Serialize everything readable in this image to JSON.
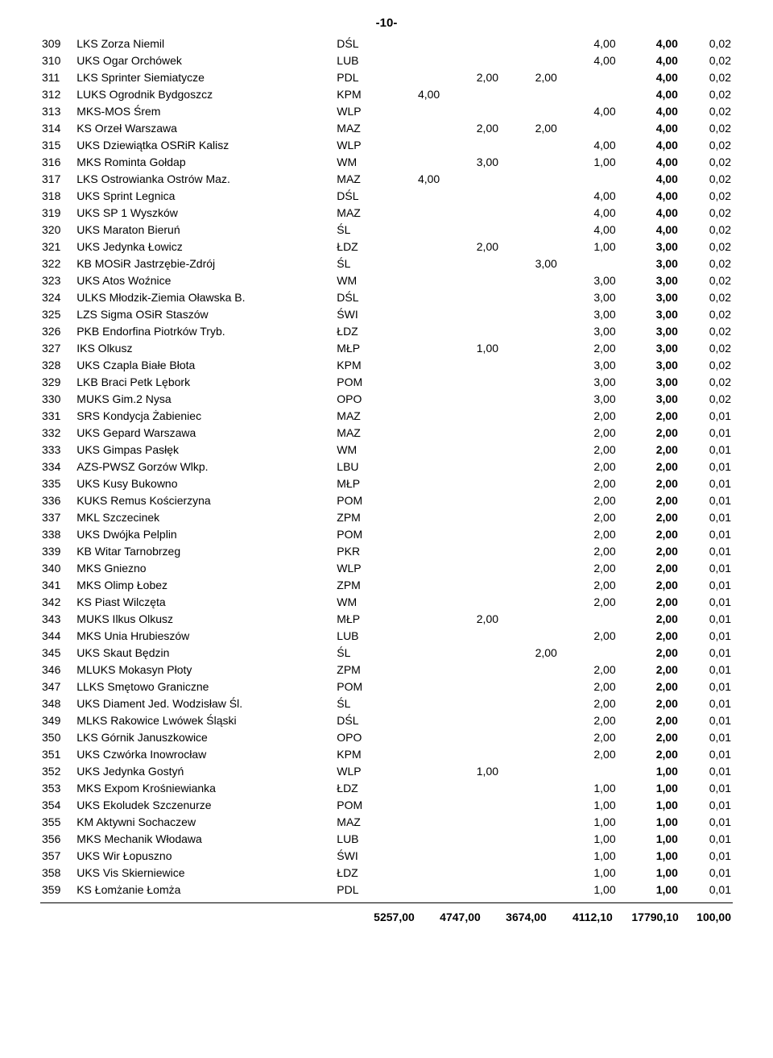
{
  "page_number_label": "-10-",
  "table": {
    "columns": [
      "rank",
      "club",
      "region",
      "c1",
      "c2",
      "c3",
      "c4",
      "total",
      "pct"
    ],
    "rows": [
      [
        "309",
        "LKS Zorza Niemil",
        "DŚL",
        "",
        "",
        "",
        "4,00",
        "4,00",
        "0,02"
      ],
      [
        "310",
        "UKS Ogar Orchówek",
        "LUB",
        "",
        "",
        "",
        "4,00",
        "4,00",
        "0,02"
      ],
      [
        "311",
        "LKS Sprinter Siemiatycze",
        "PDL",
        "",
        "2,00",
        "2,00",
        "",
        "4,00",
        "0,02"
      ],
      [
        "312",
        "LUKS Ogrodnik Bydgoszcz",
        "KPM",
        "4,00",
        "",
        "",
        "",
        "4,00",
        "0,02"
      ],
      [
        "313",
        "MKS-MOS Śrem",
        "WLP",
        "",
        "",
        "",
        "4,00",
        "4,00",
        "0,02"
      ],
      [
        "314",
        "KS Orzeł Warszawa",
        "MAZ",
        "",
        "2,00",
        "2,00",
        "",
        "4,00",
        "0,02"
      ],
      [
        "315",
        "UKS Dziewiątka OSRiR Kalisz",
        "WLP",
        "",
        "",
        "",
        "4,00",
        "4,00",
        "0,02"
      ],
      [
        "316",
        "MKS Rominta Gołdap",
        "WM",
        "",
        "3,00",
        "",
        "1,00",
        "4,00",
        "0,02"
      ],
      [
        "317",
        "LKS Ostrowianka Ostrów Maz.",
        "MAZ",
        "4,00",
        "",
        "",
        "",
        "4,00",
        "0,02"
      ],
      [
        "318",
        "UKS Sprint Legnica",
        "DŚL",
        "",
        "",
        "",
        "4,00",
        "4,00",
        "0,02"
      ],
      [
        "319",
        "UKS SP 1 Wyszków",
        "MAZ",
        "",
        "",
        "",
        "4,00",
        "4,00",
        "0,02"
      ],
      [
        "320",
        "UKS Maraton Bieruń",
        "ŚL",
        "",
        "",
        "",
        "4,00",
        "4,00",
        "0,02"
      ],
      [
        "321",
        "UKS Jedynka Łowicz",
        "ŁDZ",
        "",
        "2,00",
        "",
        "1,00",
        "3,00",
        "0,02"
      ],
      [
        "322",
        "KB MOSiR Jastrzębie-Zdrój",
        "ŚL",
        "",
        "",
        "3,00",
        "",
        "3,00",
        "0,02"
      ],
      [
        "323",
        "UKS Atos Woźnice",
        "WM",
        "",
        "",
        "",
        "3,00",
        "3,00",
        "0,02"
      ],
      [
        "324",
        "ULKS Młodzik-Ziemia Oławska B.",
        "DŚL",
        "",
        "",
        "",
        "3,00",
        "3,00",
        "0,02"
      ],
      [
        "325",
        "LZS Sigma OSiR Staszów",
        "ŚWI",
        "",
        "",
        "",
        "3,00",
        "3,00",
        "0,02"
      ],
      [
        "326",
        "PKB Endorfina Piotrków Tryb.",
        "ŁDZ",
        "",
        "",
        "",
        "3,00",
        "3,00",
        "0,02"
      ],
      [
        "327",
        "IKS Olkusz",
        "MŁP",
        "",
        "1,00",
        "",
        "2,00",
        "3,00",
        "0,02"
      ],
      [
        "328",
        "UKS Czapla Białe Błota",
        "KPM",
        "",
        "",
        "",
        "3,00",
        "3,00",
        "0,02"
      ],
      [
        "329",
        "LKB Braci Petk Lębork",
        "POM",
        "",
        "",
        "",
        "3,00",
        "3,00",
        "0,02"
      ],
      [
        "330",
        "MUKS Gim.2 Nysa",
        "OPO",
        "",
        "",
        "",
        "3,00",
        "3,00",
        "0,02"
      ],
      [
        "331",
        "SRS Kondycja Żabieniec",
        "MAZ",
        "",
        "",
        "",
        "2,00",
        "2,00",
        "0,01"
      ],
      [
        "332",
        "UKS Gepard Warszawa",
        "MAZ",
        "",
        "",
        "",
        "2,00",
        "2,00",
        "0,01"
      ],
      [
        "333",
        "UKS Gimpas Pasłęk",
        "WM",
        "",
        "",
        "",
        "2,00",
        "2,00",
        "0,01"
      ],
      [
        "334",
        "AZS-PWSZ Gorzów Wlkp.",
        "LBU",
        "",
        "",
        "",
        "2,00",
        "2,00",
        "0,01"
      ],
      [
        "335",
        "UKS Kusy Bukowno",
        "MŁP",
        "",
        "",
        "",
        "2,00",
        "2,00",
        "0,01"
      ],
      [
        "336",
        "KUKS Remus Kościerzyna",
        "POM",
        "",
        "",
        "",
        "2,00",
        "2,00",
        "0,01"
      ],
      [
        "337",
        "MKL Szczecinek",
        "ZPM",
        "",
        "",
        "",
        "2,00",
        "2,00",
        "0,01"
      ],
      [
        "338",
        "UKS Dwójka Pelplin",
        "POM",
        "",
        "",
        "",
        "2,00",
        "2,00",
        "0,01"
      ],
      [
        "339",
        "KB Witar Tarnobrzeg",
        "PKR",
        "",
        "",
        "",
        "2,00",
        "2,00",
        "0,01"
      ],
      [
        "340",
        "MKS Gniezno",
        "WLP",
        "",
        "",
        "",
        "2,00",
        "2,00",
        "0,01"
      ],
      [
        "341",
        "MKS Olimp Łobez",
        "ZPM",
        "",
        "",
        "",
        "2,00",
        "2,00",
        "0,01"
      ],
      [
        "342",
        "KS Piast Wilczęta",
        "WM",
        "",
        "",
        "",
        "2,00",
        "2,00",
        "0,01"
      ],
      [
        "343",
        "MUKS Ilkus Olkusz",
        "MŁP",
        "",
        "2,00",
        "",
        "",
        "2,00",
        "0,01"
      ],
      [
        "344",
        "MKS Unia Hrubieszów",
        "LUB",
        "",
        "",
        "",
        "2,00",
        "2,00",
        "0,01"
      ],
      [
        "345",
        "UKS Skaut Będzin",
        "ŚL",
        "",
        "",
        "2,00",
        "",
        "2,00",
        "0,01"
      ],
      [
        "346",
        "MLUKS Mokasyn Płoty",
        "ZPM",
        "",
        "",
        "",
        "2,00",
        "2,00",
        "0,01"
      ],
      [
        "347",
        "LLKS Smętowo Graniczne",
        "POM",
        "",
        "",
        "",
        "2,00",
        "2,00",
        "0,01"
      ],
      [
        "348",
        "UKS Diament Jed. Wodzisław Śl.",
        "ŚL",
        "",
        "",
        "",
        "2,00",
        "2,00",
        "0,01"
      ],
      [
        "349",
        "MLKS Rakowice Lwówek Śląski",
        "DŚL",
        "",
        "",
        "",
        "2,00",
        "2,00",
        "0,01"
      ],
      [
        "350",
        "LKS Górnik Januszkowice",
        "OPO",
        "",
        "",
        "",
        "2,00",
        "2,00",
        "0,01"
      ],
      [
        "351",
        "UKS Czwórka Inowrocław",
        "KPM",
        "",
        "",
        "",
        "2,00",
        "2,00",
        "0,01"
      ],
      [
        "352",
        "UKS Jedynka Gostyń",
        "WLP",
        "",
        "1,00",
        "",
        "",
        "1,00",
        "0,01"
      ],
      [
        "353",
        "MKS Expom Krośniewianka",
        "ŁDZ",
        "",
        "",
        "",
        "1,00",
        "1,00",
        "0,01"
      ],
      [
        "354",
        "UKS Ekoludek Szczenurze",
        "POM",
        "",
        "",
        "",
        "1,00",
        "1,00",
        "0,01"
      ],
      [
        "355",
        "KM Aktywni Sochaczew",
        "MAZ",
        "",
        "",
        "",
        "1,00",
        "1,00",
        "0,01"
      ],
      [
        "356",
        "MKS Mechanik Włodawa",
        "LUB",
        "",
        "",
        "",
        "1,00",
        "1,00",
        "0,01"
      ],
      [
        "357",
        "UKS Wir Łopuszno",
        "ŚWI",
        "",
        "",
        "",
        "1,00",
        "1,00",
        "0,01"
      ],
      [
        "358",
        "UKS Vis Skierniewice",
        "ŁDZ",
        "",
        "",
        "",
        "1,00",
        "1,00",
        "0,01"
      ],
      [
        "359",
        "KS Łomżanie Łomża",
        "PDL",
        "",
        "",
        "",
        "1,00",
        "1,00",
        "0,01"
      ]
    ]
  },
  "summary": {
    "c1": "5257,00",
    "c2": "4747,00",
    "c3": "3674,00",
    "c4": "4112,10",
    "total": "17790,10",
    "pct": "100,00"
  }
}
